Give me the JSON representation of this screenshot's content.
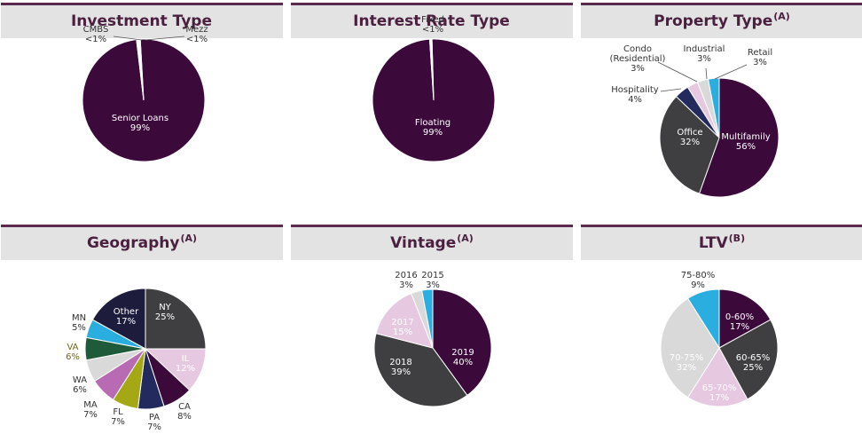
{
  "chart_data": [
    {
      "type": "pie",
      "title": "Investment Type",
      "superscript": "",
      "slices": [
        {
          "name": "Senior Loans",
          "value": 99,
          "label": "99%",
          "color": "#3b0a3b",
          "label_pos": "inside"
        },
        {
          "name": "CMBS",
          "value": 0.5,
          "label": "<1%",
          "color": "#ffffff",
          "label_pos": "outside"
        },
        {
          "name": "Mezz",
          "value": 0.5,
          "label": "<1%",
          "color": "#ffffff",
          "label_pos": "outside"
        }
      ]
    },
    {
      "type": "pie",
      "title": "Interest Rate Type",
      "superscript": "",
      "slices": [
        {
          "name": "Floating",
          "value": 99,
          "label": "99%",
          "color": "#3b0a3b",
          "label_pos": "inside"
        },
        {
          "name": "Fixed",
          "value": 0.6,
          "label": "<1%",
          "color": "#ffffff",
          "label_pos": "outside"
        }
      ]
    },
    {
      "type": "pie",
      "title": "Property Type",
      "superscript": "(A)",
      "slices": [
        {
          "name": "Multifamily",
          "value": 56,
          "label": "56%",
          "color": "#3b0a3b",
          "label_pos": "inside"
        },
        {
          "name": "Office",
          "value": 32,
          "label": "32%",
          "color": "#3f3f41",
          "label_pos": "inside"
        },
        {
          "name": "Hospitality",
          "value": 4,
          "label": "4%",
          "color": "#232b5e",
          "label_pos": "outside"
        },
        {
          "name": "Condo (Residential)",
          "value": 3,
          "label": "3%",
          "color": "#e6c8e0",
          "label_pos": "outside"
        },
        {
          "name": "Industrial",
          "value": 3,
          "label": "3%",
          "color": "#d9d9d9",
          "label_pos": "outside"
        },
        {
          "name": "Retail",
          "value": 3,
          "label": "3%",
          "color": "#2aaee0",
          "label_pos": "outside"
        }
      ]
    },
    {
      "type": "pie",
      "title": "Geography",
      "superscript": "(A)",
      "slices": [
        {
          "name": "NY",
          "value": 25,
          "label": "25%",
          "color": "#3f3f41",
          "label_pos": "inside"
        },
        {
          "name": "IL",
          "value": 12,
          "label": "12%",
          "color": "#e6c8e0",
          "label_pos": "inside"
        },
        {
          "name": "CA",
          "value": 8,
          "label": "8%",
          "color": "#3b0a3b",
          "label_pos": "outside"
        },
        {
          "name": "PA",
          "value": 7,
          "label": "7%",
          "color": "#232b5e",
          "label_pos": "outside"
        },
        {
          "name": "FL",
          "value": 7,
          "label": "7%",
          "color": "#a5a815",
          "label_pos": "outside"
        },
        {
          "name": "MA",
          "value": 7,
          "label": "7%",
          "color": "#b86bb3",
          "label_pos": "outside"
        },
        {
          "name": "WA",
          "value": 6,
          "label": "6%",
          "color": "#d9d9d9",
          "label_pos": "outside"
        },
        {
          "name": "VA",
          "value": 6,
          "label": "6%",
          "color": "#1f5a3a",
          "label_pos": "outside"
        },
        {
          "name": "MN",
          "value": 5,
          "label": "5%",
          "color": "#2aaee0",
          "label_pos": "outside"
        },
        {
          "name": "Other",
          "value": 17,
          "label": "17%",
          "color": "#1e1c3c",
          "label_pos": "inside"
        }
      ]
    },
    {
      "type": "pie",
      "title": "Vintage",
      "superscript": "(A)",
      "slices": [
        {
          "name": "2019",
          "value": 40,
          "label": "40%",
          "color": "#3b0a3b",
          "label_pos": "inside"
        },
        {
          "name": "2018",
          "value": 39,
          "label": "39%",
          "color": "#3f3f41",
          "label_pos": "inside"
        },
        {
          "name": "2017",
          "value": 15,
          "label": "15%",
          "color": "#e6c8e0",
          "label_pos": "inside"
        },
        {
          "name": "2016",
          "value": 3,
          "label": "3%",
          "color": "#d9d9d9",
          "label_pos": "outside"
        },
        {
          "name": "2015",
          "value": 3,
          "label": "3%",
          "color": "#2aaee0",
          "label_pos": "outside"
        }
      ]
    },
    {
      "type": "pie",
      "title": "LTV",
      "superscript": "(B)",
      "slices": [
        {
          "name": "0-60%",
          "value": 17,
          "label": "17%",
          "color": "#3b0a3b",
          "label_pos": "inside"
        },
        {
          "name": "60-65%",
          "value": 25,
          "label": "25%",
          "color": "#3f3f41",
          "label_pos": "inside"
        },
        {
          "name": "65-70%",
          "value": 17,
          "label": "17%",
          "color": "#e6c8e0",
          "label_pos": "inside"
        },
        {
          "name": "70-75%",
          "value": 32,
          "label": "32%",
          "color": "#d9d9d9",
          "label_pos": "inside"
        },
        {
          "name": "75-80%",
          "value": 9,
          "label": "9%",
          "color": "#2aaee0",
          "label_pos": "outside"
        }
      ]
    }
  ]
}
